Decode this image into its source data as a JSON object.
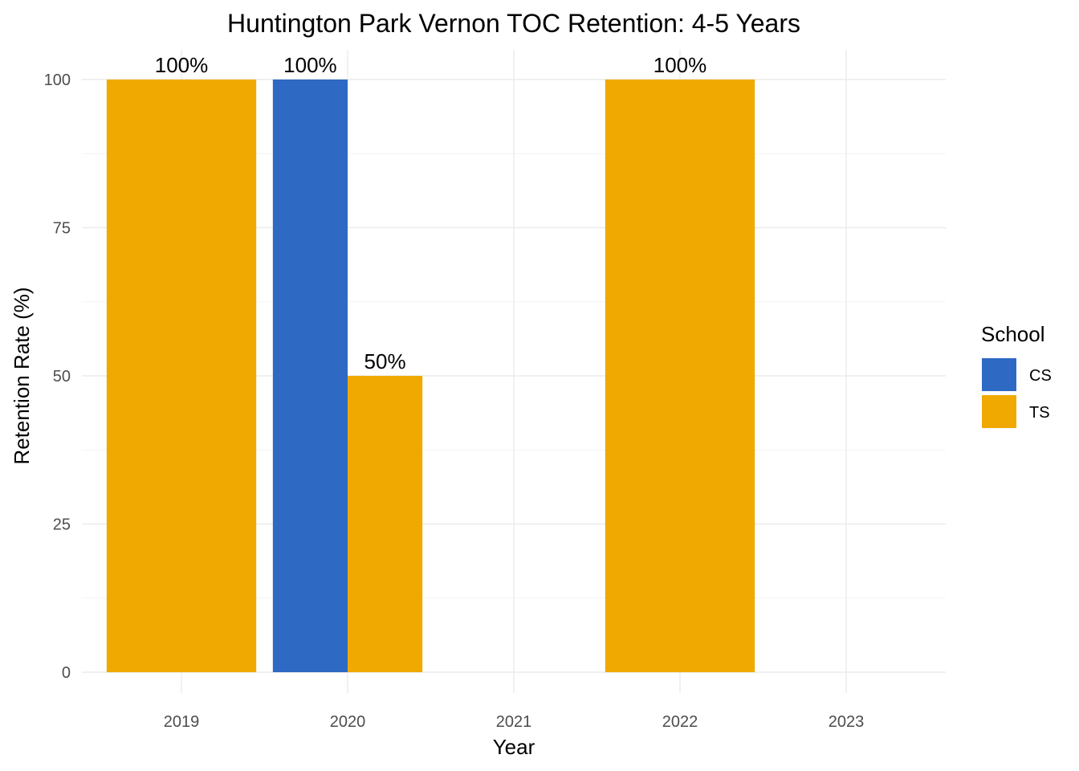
{
  "chart_data": {
    "type": "bar",
    "title": "Huntington Park Vernon TOC Retention: 4-5 Years",
    "xlabel": "Year",
    "ylabel": "Retention Rate (%)",
    "categories": [
      "2019",
      "2020",
      "2021",
      "2022",
      "2023"
    ],
    "ylim": [
      0,
      100
    ],
    "yticks": [
      0,
      25,
      50,
      75,
      100
    ],
    "grid": true,
    "legend": {
      "title": "School",
      "placement": "right"
    },
    "series": [
      {
        "name": "CS",
        "color": "#2E6AC4",
        "values": [
          null,
          100,
          null,
          null,
          null
        ],
        "labels": [
          "",
          "100%",
          "",
          "",
          ""
        ]
      },
      {
        "name": "TS",
        "color": "#F0A900",
        "values": [
          100,
          50,
          null,
          100,
          null
        ],
        "labels": [
          "100%",
          "50%",
          "",
          "100%",
          ""
        ]
      }
    ]
  }
}
